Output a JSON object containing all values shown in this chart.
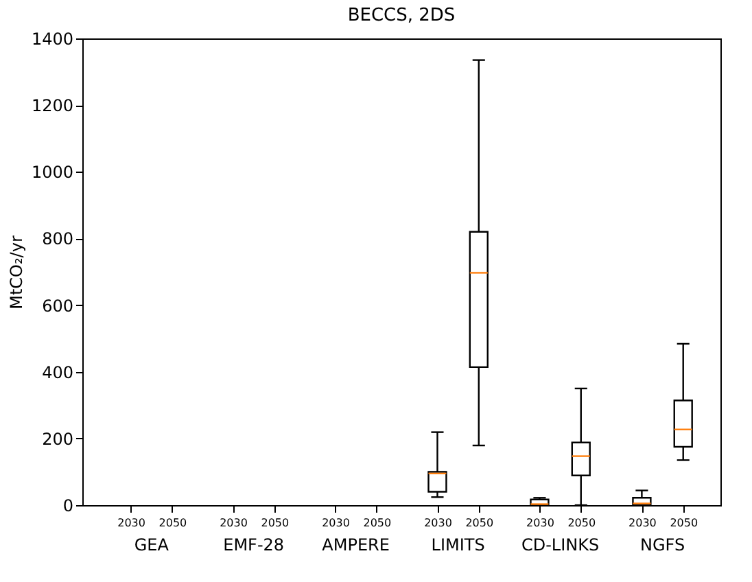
{
  "chart_data": {
    "type": "box",
    "title": "BECCS, 2DS",
    "ylabel": "MtCO₂/yr",
    "categories": [
      "2030",
      "2050",
      "2030",
      "2050",
      "2030",
      "2050",
      "2030",
      "2050",
      "2030",
      "2050",
      "2030",
      "2050"
    ],
    "annotations": [
      "GEA",
      "EMF-28",
      "AMPERE",
      "LIMITS",
      "CD-LINKS",
      "NGFS"
    ],
    "color": "#000000",
    "boxes": [
      null,
      null,
      null,
      null,
      null,
      null,
      {
        "low": 24,
        "q1": 40,
        "median": 95,
        "q3": 100,
        "high": 219
      },
      {
        "low": 179,
        "q1": 414,
        "median": 697,
        "q3": 820,
        "high": 1335
      },
      {
        "low": 0,
        "q1": 1,
        "median": 3,
        "q3": 17,
        "high": 22
      },
      {
        "low": 0,
        "q1": 89,
        "median": 147,
        "q3": 188,
        "high": 350
      },
      {
        "low": 0,
        "q1": 0,
        "median": 5,
        "q3": 22,
        "high": 44
      },
      {
        "low": 135,
        "q1": 175,
        "median": 227,
        "q3": 314,
        "high": 484
      }
    ],
    "ylim": [
      0,
      1400
    ],
    "yticks": [
      0,
      200,
      400,
      600,
      800,
      1000,
      1200,
      1400
    ],
    "grid": false
  }
}
